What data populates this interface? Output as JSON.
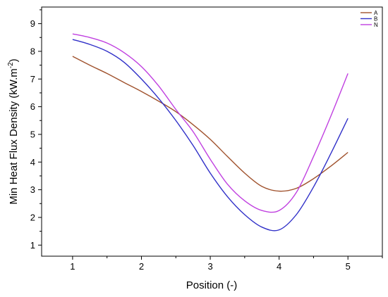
{
  "chart_data": {
    "type": "line",
    "xlabel": "Position (-)",
    "ylabel_main": "Min Heat Flux Density (kW.m",
    "ylabel_sup": "-2",
    "ylabel_tail": ")",
    "xlim": [
      0.55,
      5.5
    ],
    "ylim": [
      0.6,
      9.6
    ],
    "xticks": [
      1,
      2,
      3,
      4,
      5
    ],
    "yticks": [
      1,
      2,
      3,
      4,
      5,
      6,
      7,
      8,
      9
    ],
    "grid": false,
    "legend_position": "top-right",
    "series": [
      {
        "name": "A",
        "color": "#a0522d",
        "x": [
          1.0,
          1.25,
          1.5,
          1.75,
          2.0,
          2.25,
          2.5,
          2.75,
          3.0,
          3.25,
          3.5,
          3.75,
          4.0,
          4.25,
          4.5,
          4.75,
          5.0
        ],
        "y": [
          7.82,
          7.5,
          7.2,
          6.87,
          6.55,
          6.2,
          5.82,
          5.35,
          4.82,
          4.2,
          3.6,
          3.12,
          2.95,
          3.05,
          3.4,
          3.85,
          4.35
        ]
      },
      {
        "name": "B",
        "color": "#3030c8",
        "x": [
          1.0,
          1.25,
          1.5,
          1.75,
          2.0,
          2.25,
          2.5,
          2.75,
          3.0,
          3.25,
          3.5,
          3.75,
          4.0,
          4.25,
          4.5,
          4.75,
          5.0
        ],
        "y": [
          8.43,
          8.25,
          8.0,
          7.6,
          7.0,
          6.3,
          5.5,
          4.6,
          3.6,
          2.75,
          2.1,
          1.65,
          1.55,
          2.1,
          3.1,
          4.3,
          5.58
        ]
      },
      {
        "name": "N",
        "color": "#c040e0",
        "x": [
          1.0,
          1.25,
          1.5,
          1.75,
          2.0,
          2.25,
          2.5,
          2.75,
          3.0,
          3.25,
          3.5,
          3.75,
          4.0,
          4.25,
          4.5,
          4.75,
          5.0
        ],
        "y": [
          8.63,
          8.5,
          8.3,
          7.95,
          7.45,
          6.75,
          5.9,
          5.1,
          4.1,
          3.2,
          2.6,
          2.25,
          2.25,
          2.9,
          4.2,
          5.65,
          7.2
        ]
      }
    ]
  }
}
